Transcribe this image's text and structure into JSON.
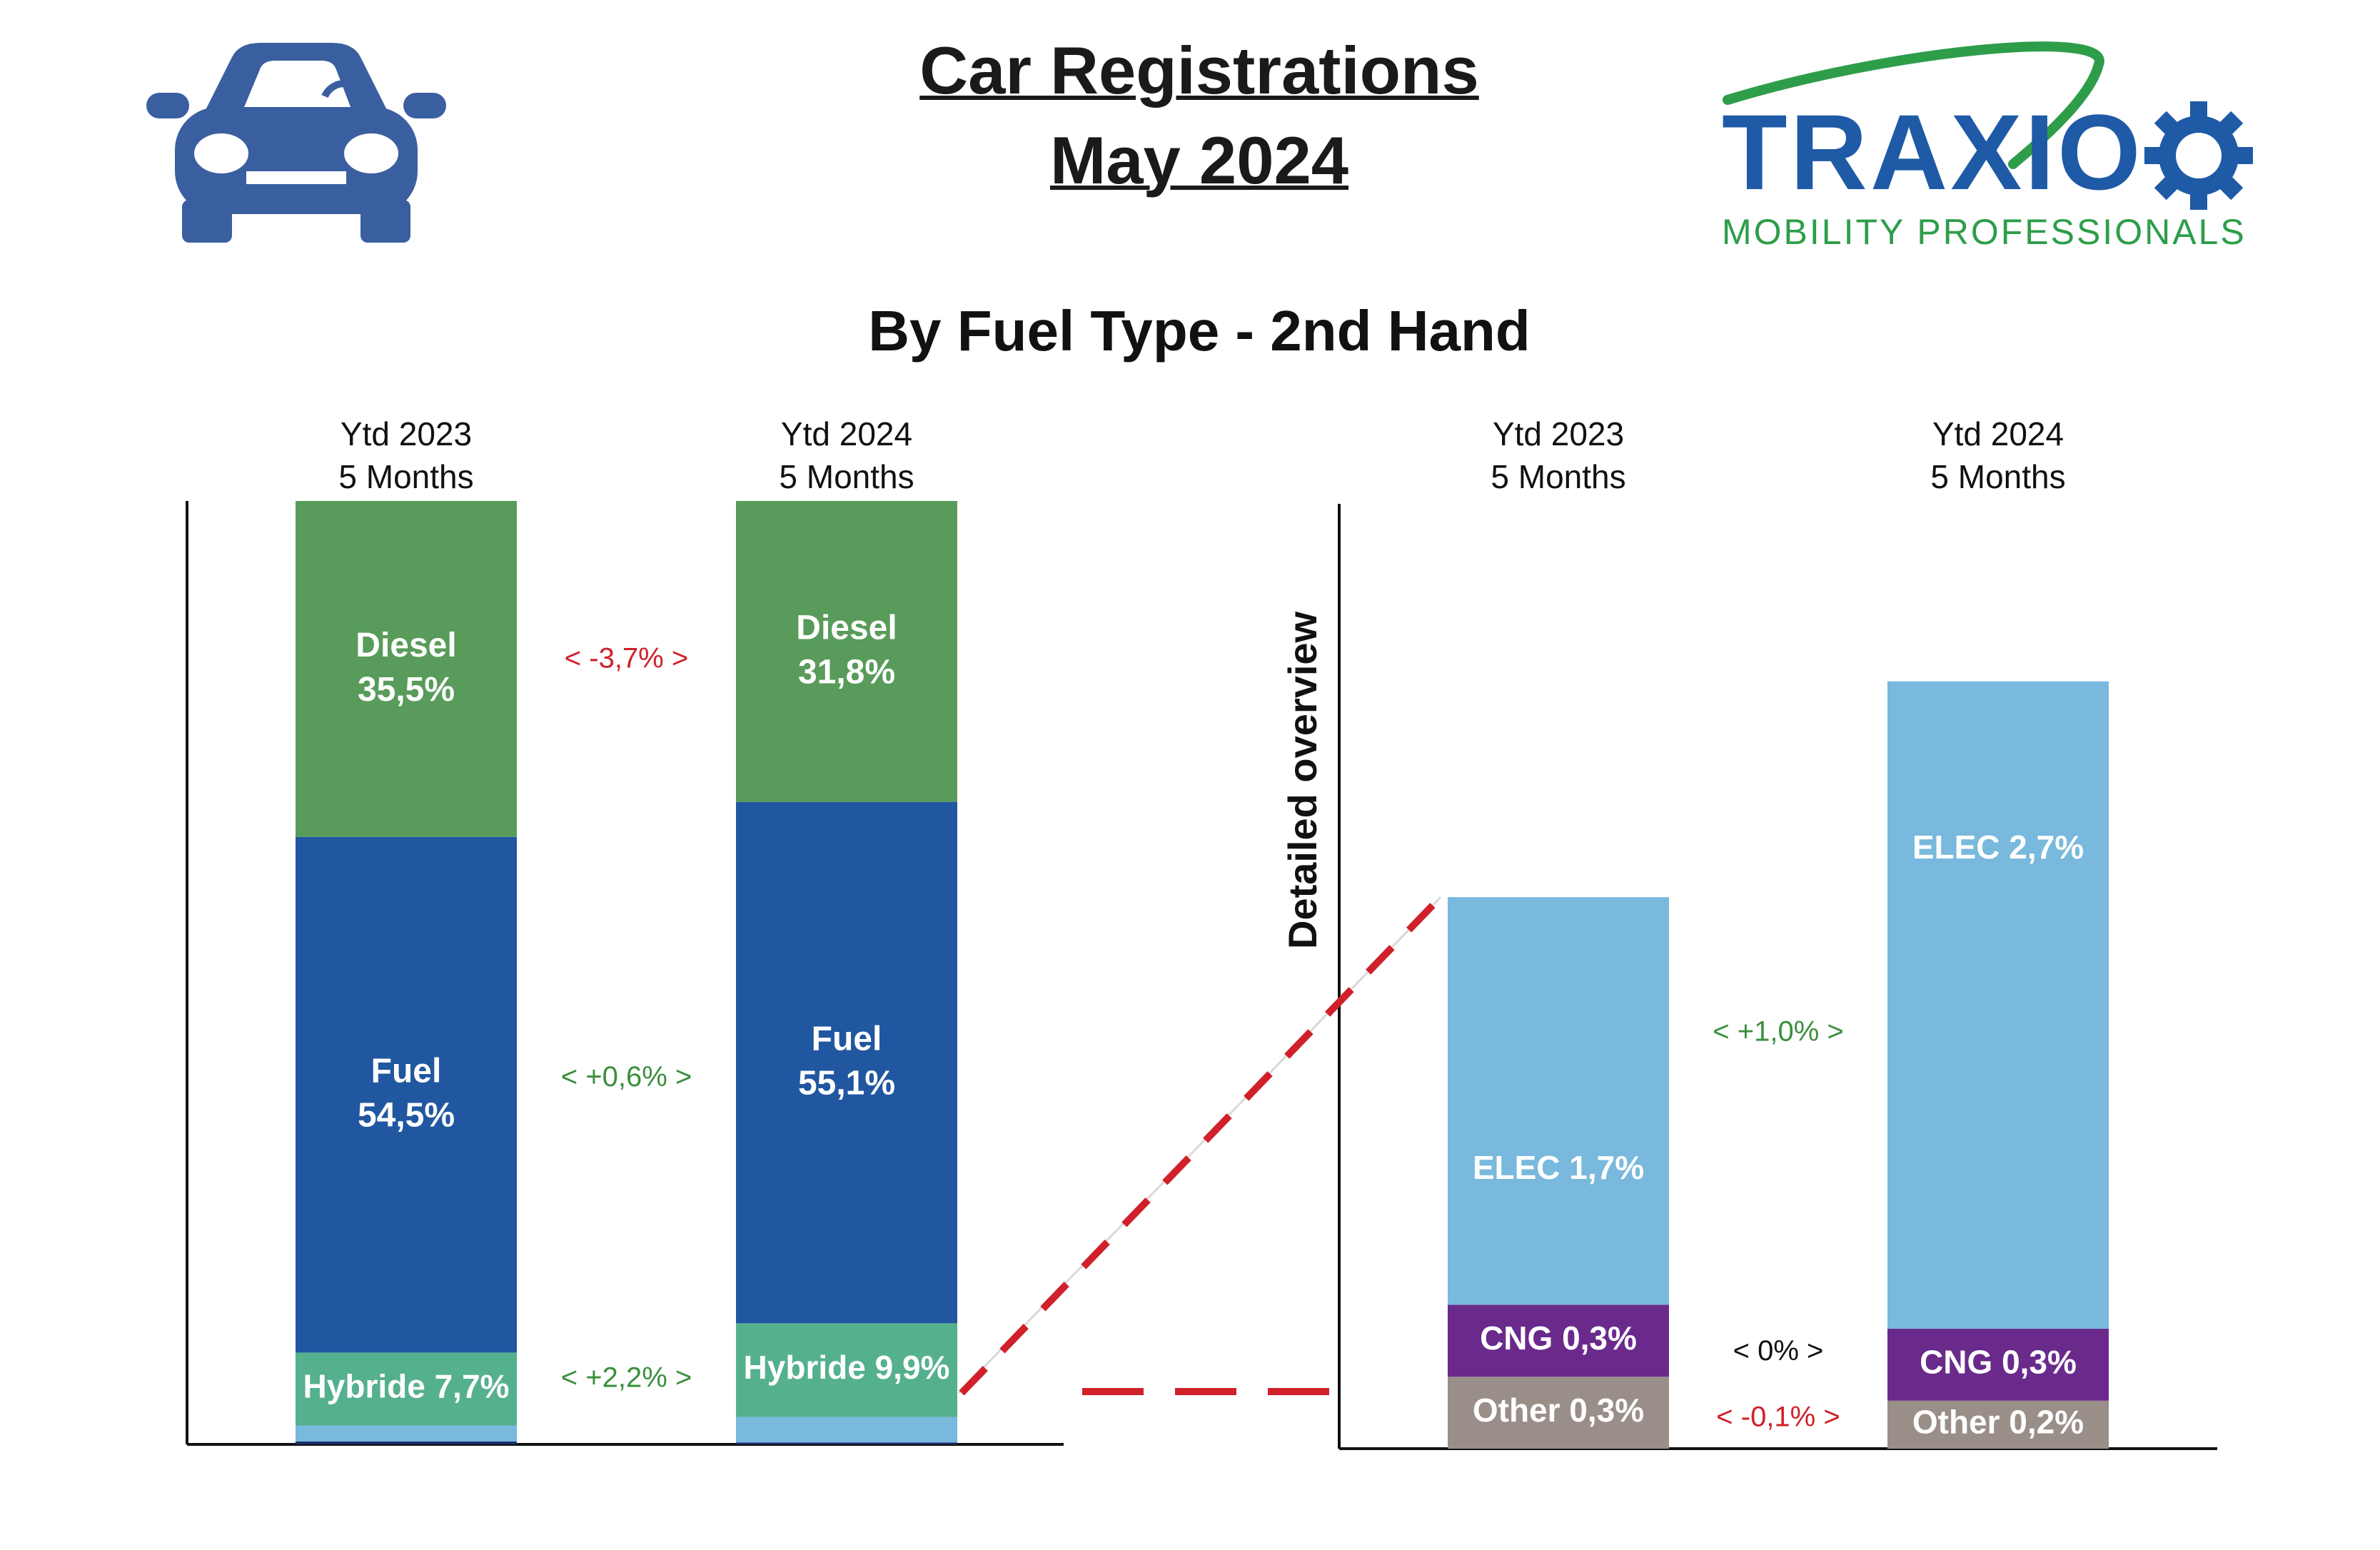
{
  "header": {
    "title_line1": "Car Registrations",
    "title_line2": "May 2024",
    "subtitle": "By Fuel Type - 2nd Hand",
    "car_icon": "car-icon",
    "logo": {
      "word": "TRAXIO",
      "tagline": "MOBILITY PROFESSIONALS",
      "icon": "gear-icon"
    }
  },
  "colors": {
    "diesel": "#589b5a",
    "fuel": "#2157a0",
    "hybride": "#55b08e",
    "elec": "#78b9dd",
    "cng": "#6a2a8b",
    "other": "#9a8e89",
    "navy": "#1a2b6b",
    "delta_negative": "#d0202a",
    "delta_positive": "#3a8f3c",
    "delta_neutral": "#111111",
    "logo_blue": "#1f5aa6",
    "logo_green": "#2e9d4a",
    "car_icon": "#3a5fa0"
  },
  "chart_data": [
    {
      "type": "bar",
      "stacked": true,
      "normalized": true,
      "categories": [
        {
          "line1": "Ytd 2023",
          "line2": "5 Months"
        },
        {
          "line1": "Ytd 2024",
          "line2": "5 Months"
        }
      ],
      "series": [
        {
          "key": "other_small",
          "values": [
            0.3,
            0.2
          ],
          "label": null
        },
        {
          "key": "elec",
          "values": [
            1.7,
            2.7
          ],
          "label": null
        },
        {
          "key": "hybride",
          "values": [
            7.7,
            9.9
          ],
          "label": "Hybride",
          "inline": true
        },
        {
          "key": "fuel",
          "values": [
            54.5,
            55.1
          ],
          "label": "Fuel"
        },
        {
          "key": "diesel",
          "values": [
            35.5,
            31.8
          ],
          "label": "Diesel"
        }
      ],
      "value_labels": {
        "diesel": [
          "35,5%",
          "31,8%"
        ],
        "fuel": [
          "54,5%",
          "55,1%"
        ],
        "hybride": [
          "7,7%",
          "9,9%"
        ]
      },
      "deltas": [
        {
          "series": "diesel",
          "text": "<  -3,7%  >",
          "tone": "delta_negative"
        },
        {
          "series": "fuel",
          "text": "<  +0,6%  >",
          "tone": "delta_positive"
        },
        {
          "series": "hybride",
          "text": "<  +2,2%  >",
          "tone": "delta_positive"
        }
      ]
    },
    {
      "type": "bar",
      "stacked": true,
      "axis_label": "Detailed overview",
      "categories": [
        {
          "line1": "Ytd 2023",
          "line2": "5 Months"
        },
        {
          "line1": "Ytd 2024",
          "line2": "5 Months"
        }
      ],
      "series": [
        {
          "key": "other",
          "values": [
            0.3,
            0.2
          ],
          "label": "Other"
        },
        {
          "key": "cng",
          "values": [
            0.3,
            0.3
          ],
          "label": "CNG"
        },
        {
          "key": "elec",
          "values": [
            1.7,
            2.7
          ],
          "label": "ELEC"
        }
      ],
      "value_labels": {
        "other": [
          "Other 0,3%",
          "Other 0,2%"
        ],
        "cng": [
          "CNG 0,3%",
          "CNG 0,3%"
        ],
        "elec": [
          "ELEC 1,7%",
          "ELEC 2,7%"
        ]
      },
      "deltas": [
        {
          "series": "elec",
          "text": "<  +1,0%  >",
          "tone": "delta_positive"
        },
        {
          "series": "cng",
          "text": "<  0%  >",
          "tone": "delta_neutral"
        },
        {
          "series": "other",
          "text": "<  -0,1%  >",
          "tone": "delta_negative"
        }
      ]
    }
  ]
}
